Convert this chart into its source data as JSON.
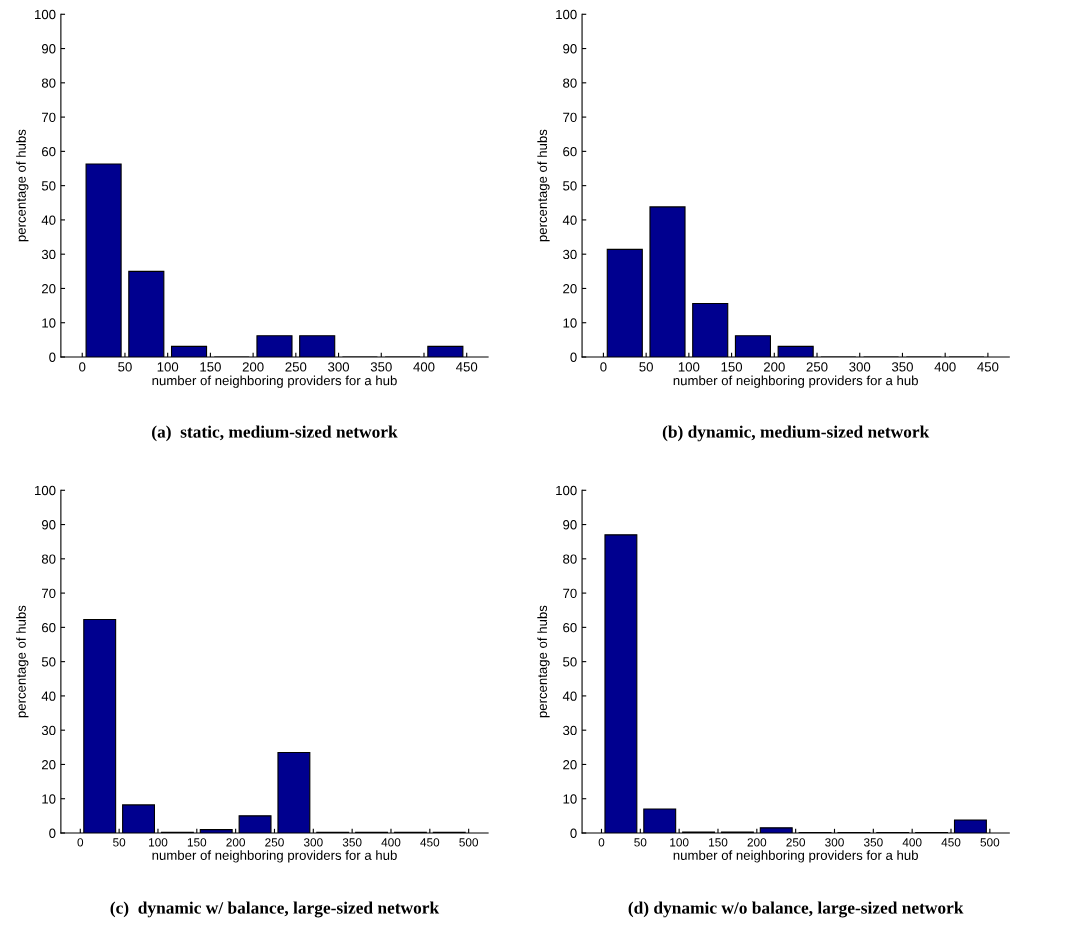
{
  "chart_data": [
    {
      "type": "histogram",
      "title": "(a)  static, medium-sized network",
      "xlabel": "number of neighboring providers for a hub",
      "ylabel": "percentage of hubs",
      "bins": [
        0,
        50,
        100,
        150,
        200,
        250,
        300,
        350,
        400,
        450
      ],
      "values": [
        56.3,
        25,
        3.1,
        0,
        6.2,
        6.2,
        0,
        0,
        3.1
      ],
      "color": "#00008f",
      "xlim": [
        -25,
        475
      ],
      "xticks": [
        0,
        50,
        100,
        150,
        200,
        250,
        300,
        350,
        400,
        450
      ],
      "ylim": [
        0,
        100
      ],
      "yticks": [
        0,
        10,
        20,
        30,
        40,
        50,
        60,
        70,
        80,
        90,
        100
      ],
      "grid": false,
      "legend": false
    },
    {
      "type": "histogram",
      "title": "(b) dynamic, medium-sized network",
      "xlabel": "number of neighboring providers for a hub",
      "ylabel": "percentage of hubs",
      "bins": [
        0,
        50,
        100,
        150,
        200,
        250,
        300,
        350,
        400,
        450
      ],
      "values": [
        31.4,
        43.8,
        15.6,
        6.2,
        3.1,
        0,
        0,
        0,
        0
      ],
      "color": "#00008f",
      "xlim": [
        -25,
        475
      ],
      "xticks": [
        0,
        50,
        100,
        150,
        200,
        250,
        300,
        350,
        400,
        450
      ],
      "ylim": [
        0,
        100
      ],
      "yticks": [
        0,
        10,
        20,
        30,
        40,
        50,
        60,
        70,
        80,
        90,
        100
      ],
      "grid": false,
      "legend": false
    },
    {
      "type": "histogram",
      "title": "(c)  dynamic w/ balance, large-sized network",
      "xlabel": "number of neighboring providers for a hub",
      "ylabel": "percentage of hubs",
      "bins": [
        0,
        50,
        100,
        150,
        200,
        250,
        300,
        350,
        400,
        450,
        500
      ],
      "values": [
        62.3,
        8.2,
        0.2,
        1.0,
        5.0,
        23.5,
        0.2,
        0.2,
        0.2,
        0.2
      ],
      "color": "#00008f",
      "xlim": [
        -25,
        525
      ],
      "xticks": [
        0,
        50,
        100,
        150,
        200,
        250,
        300,
        350,
        400,
        450,
        500
      ],
      "ylim": [
        0,
        100
      ],
      "yticks": [
        0,
        10,
        20,
        30,
        40,
        50,
        60,
        70,
        80,
        90,
        100
      ],
      "grid": false,
      "legend": false
    },
    {
      "type": "histogram",
      "title": "(d) dynamic w/o balance, large-sized network",
      "xlabel": "number of neighboring providers for a hub",
      "ylabel": "percentage of hubs",
      "bins": [
        0,
        50,
        100,
        150,
        200,
        250,
        300,
        350,
        400,
        450,
        500
      ],
      "values": [
        87.0,
        7.0,
        0.3,
        0.3,
        1.5,
        0.1,
        0.1,
        0.1,
        0.1,
        3.8
      ],
      "color": "#00008f",
      "xlim": [
        -25,
        525
      ],
      "xticks": [
        0,
        50,
        100,
        150,
        200,
        250,
        300,
        350,
        400,
        450,
        500
      ],
      "ylim": [
        0,
        100
      ],
      "yticks": [
        0,
        10,
        20,
        30,
        40,
        50,
        60,
        70,
        80,
        90,
        100
      ],
      "grid": false,
      "legend": false
    }
  ]
}
